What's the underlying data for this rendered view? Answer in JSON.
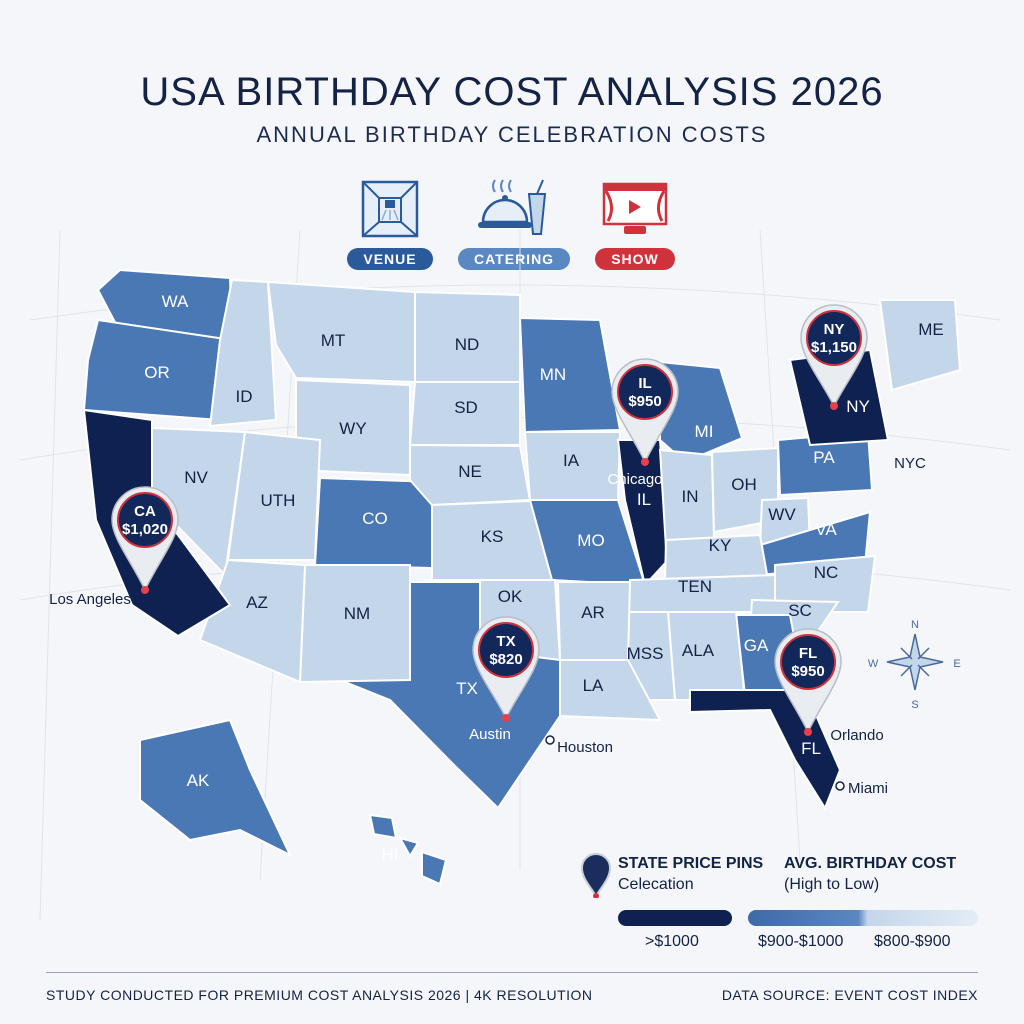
{
  "header": {
    "title": "USA BIRTHDAY COST ANALYSIS 2026",
    "subtitle": "ANNUAL BIRTHDAY CELEBRATION COSTS"
  },
  "categories": [
    {
      "label": "VENUE",
      "icon": "venue-icon",
      "color": "#2a5a9a"
    },
    {
      "label": "CATERING",
      "icon": "catering-icon",
      "color": "#5a88c0"
    },
    {
      "label": "SHOW",
      "icon": "show-icon",
      "color": "#d0323c"
    }
  ],
  "states": [
    {
      "abbr": "WA",
      "tier": "900-1000"
    },
    {
      "abbr": "OR",
      "tier": "900-1000"
    },
    {
      "abbr": "ID",
      "tier": "800-900"
    },
    {
      "abbr": "MT",
      "tier": "800-900"
    },
    {
      "abbr": "ND",
      "tier": "800-900"
    },
    {
      "abbr": "SD",
      "tier": "800-900"
    },
    {
      "abbr": "WY",
      "tier": "800-900"
    },
    {
      "abbr": "MN",
      "tier": "900-1000"
    },
    {
      "abbr": "NV",
      "tier": "800-900"
    },
    {
      "abbr": "UTH",
      "tier": "800-900"
    },
    {
      "abbr": "CO",
      "tier": "900-1000"
    },
    {
      "abbr": "NE",
      "tier": "800-900"
    },
    {
      "abbr": "IA",
      "tier": "800-900"
    },
    {
      "abbr": "KS",
      "tier": "800-900"
    },
    {
      "abbr": "MO",
      "tier": "900-1000"
    },
    {
      "abbr": "IL",
      "tier": ">1000"
    },
    {
      "abbr": "MI",
      "tier": "900-1000"
    },
    {
      "abbr": "IN",
      "tier": "800-900"
    },
    {
      "abbr": "OH",
      "tier": "800-900"
    },
    {
      "abbr": "PA",
      "tier": "900-1000"
    },
    {
      "abbr": "NY",
      "tier": ">1000"
    },
    {
      "abbr": "ME",
      "tier": "800-900"
    },
    {
      "abbr": "WV",
      "tier": "800-900"
    },
    {
      "abbr": "VA",
      "tier": "900-1000"
    },
    {
      "abbr": "KY",
      "tier": "800-900"
    },
    {
      "abbr": "TEN",
      "tier": "800-900"
    },
    {
      "abbr": "NC",
      "tier": "800-900"
    },
    {
      "abbr": "SC",
      "tier": "800-900"
    },
    {
      "abbr": "GA",
      "tier": "900-1000"
    },
    {
      "abbr": "ALA",
      "tier": "800-900"
    },
    {
      "abbr": "MSS",
      "tier": "800-900"
    },
    {
      "abbr": "AR",
      "tier": "800-900"
    },
    {
      "abbr": "LA",
      "tier": "800-900"
    },
    {
      "abbr": "OK",
      "tier": "800-900"
    },
    {
      "abbr": "TX",
      "tier": "900-1000"
    },
    {
      "abbr": "NM",
      "tier": "800-900"
    },
    {
      "abbr": "AZ",
      "tier": "800-900"
    },
    {
      "abbr": "CA",
      "tier": ">1000"
    },
    {
      "abbr": "FL",
      "tier": ">1000"
    },
    {
      "abbr": "AK",
      "tier": "900-1000"
    },
    {
      "abbr": "HI",
      "tier": "900-1000"
    }
  ],
  "pins": [
    {
      "state": "CA",
      "price": "$1,020",
      "city": "Los Angeles"
    },
    {
      "state": "IL",
      "price": "$950",
      "city": "Chicago"
    },
    {
      "state": "NY",
      "price": "$1,150",
      "city": "NYC"
    },
    {
      "state": "TX",
      "price": "$820",
      "city": "Austin"
    },
    {
      "state": "FL",
      "price": "$950",
      "city": "Orlando"
    }
  ],
  "cities": [
    "Houston",
    "Miami"
  ],
  "compass": {
    "n": "N",
    "e": "E",
    "s": "S",
    "w": "W"
  },
  "legend": {
    "pins_title": "STATE PRICE PINS",
    "pins_sub": "Celecation",
    "cost_title": "AVG. BIRTHDAY COST",
    "cost_sub": "(High to Low)",
    "tiers": [
      {
        "label": ">$1000",
        "color": "#0f2150"
      },
      {
        "label": "$900-$1000",
        "color": "#4a78b4"
      },
      {
        "label": "$800-$900",
        "color": "#c4d6ea"
      }
    ]
  },
  "footer": {
    "left": "STUDY CONDUCTED FOR PREMIUM COST ANALYSIS 2026  |  4K RESOLUTION",
    "right": "DATA SOURCE: EVENT COST INDEX"
  }
}
